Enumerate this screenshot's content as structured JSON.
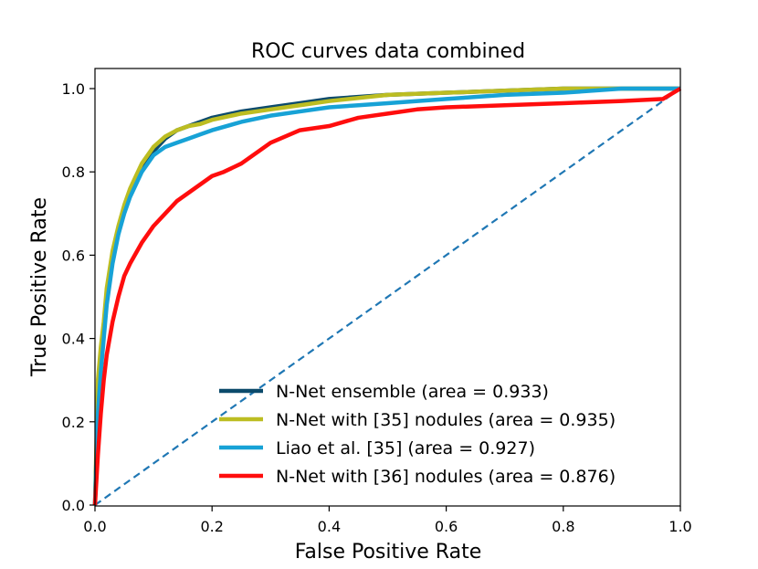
{
  "chart_data": {
    "type": "line",
    "title": "ROC curves data combined",
    "xlabel": "False Positive Rate",
    "ylabel": "True Positive Rate",
    "xlim": [
      0.0,
      1.0
    ],
    "ylim": [
      0.0,
      1.0
    ],
    "xticks": [
      "0.0",
      "0.2",
      "0.4",
      "0.6",
      "0.8",
      "1.0"
    ],
    "yticks": [
      "0.0",
      "0.2",
      "0.4",
      "0.6",
      "0.8",
      "1.0"
    ],
    "grid": false,
    "legend_position": "lower-right",
    "series": [
      {
        "name": "N-Net ensemble (area = 0.933)",
        "color": "#0b4a6b",
        "x": [
          0.0,
          0.005,
          0.01,
          0.015,
          0.02,
          0.03,
          0.04,
          0.05,
          0.06,
          0.07,
          0.08,
          0.09,
          0.1,
          0.12,
          0.14,
          0.16,
          0.18,
          0.2,
          0.25,
          0.3,
          0.35,
          0.4,
          0.5,
          0.6,
          0.7,
          0.8,
          0.9,
          1.0
        ],
        "y": [
          0.0,
          0.25,
          0.35,
          0.42,
          0.5,
          0.6,
          0.66,
          0.71,
          0.75,
          0.78,
          0.81,
          0.83,
          0.85,
          0.88,
          0.9,
          0.91,
          0.92,
          0.93,
          0.945,
          0.955,
          0.965,
          0.975,
          0.985,
          0.99,
          0.995,
          1.0,
          1.0,
          1.0
        ]
      },
      {
        "name": "N-Net with [35] nodules (area = 0.935)",
        "color": "#bcbd22",
        "x": [
          0.0,
          0.005,
          0.01,
          0.015,
          0.02,
          0.03,
          0.04,
          0.05,
          0.06,
          0.07,
          0.08,
          0.09,
          0.1,
          0.12,
          0.14,
          0.16,
          0.18,
          0.2,
          0.25,
          0.3,
          0.35,
          0.4,
          0.5,
          0.6,
          0.7,
          0.8,
          0.9,
          1.0
        ],
        "y": [
          0.0,
          0.3,
          0.38,
          0.44,
          0.52,
          0.61,
          0.67,
          0.72,
          0.76,
          0.79,
          0.82,
          0.84,
          0.86,
          0.885,
          0.9,
          0.91,
          0.915,
          0.925,
          0.94,
          0.95,
          0.96,
          0.97,
          0.985,
          0.99,
          0.995,
          1.0,
          1.0,
          1.0
        ]
      },
      {
        "name": "Liao et al. [35] (area = 0.927)",
        "color": "#17a2d6",
        "x": [
          0.0,
          0.005,
          0.01,
          0.015,
          0.02,
          0.03,
          0.04,
          0.05,
          0.06,
          0.07,
          0.08,
          0.09,
          0.1,
          0.12,
          0.14,
          0.16,
          0.18,
          0.2,
          0.25,
          0.3,
          0.35,
          0.4,
          0.45,
          0.5,
          0.6,
          0.7,
          0.8,
          0.9,
          1.0
        ],
        "y": [
          0.0,
          0.22,
          0.32,
          0.4,
          0.48,
          0.58,
          0.65,
          0.7,
          0.74,
          0.77,
          0.8,
          0.82,
          0.84,
          0.86,
          0.87,
          0.88,
          0.89,
          0.9,
          0.92,
          0.935,
          0.945,
          0.955,
          0.96,
          0.965,
          0.975,
          0.985,
          0.99,
          1.0,
          1.0
        ]
      },
      {
        "name": "N-Net with [36] nodules (area = 0.876)",
        "color": "#ff0d0d",
        "x": [
          0.0,
          0.005,
          0.01,
          0.015,
          0.02,
          0.03,
          0.04,
          0.05,
          0.06,
          0.08,
          0.1,
          0.12,
          0.14,
          0.16,
          0.18,
          0.2,
          0.22,
          0.25,
          0.28,
          0.3,
          0.35,
          0.4,
          0.45,
          0.5,
          0.55,
          0.6,
          0.7,
          0.8,
          0.9,
          0.97,
          1.0
        ],
        "y": [
          0.0,
          0.12,
          0.22,
          0.3,
          0.36,
          0.44,
          0.5,
          0.55,
          0.58,
          0.63,
          0.67,
          0.7,
          0.73,
          0.75,
          0.77,
          0.79,
          0.8,
          0.82,
          0.85,
          0.87,
          0.9,
          0.91,
          0.93,
          0.94,
          0.95,
          0.955,
          0.96,
          0.965,
          0.97,
          0.975,
          1.0
        ]
      },
      {
        "name": "",
        "color": "#1f77b4",
        "dashed": true,
        "x": [
          0.0,
          1.0
        ],
        "y": [
          0.0,
          1.0
        ]
      }
    ]
  }
}
